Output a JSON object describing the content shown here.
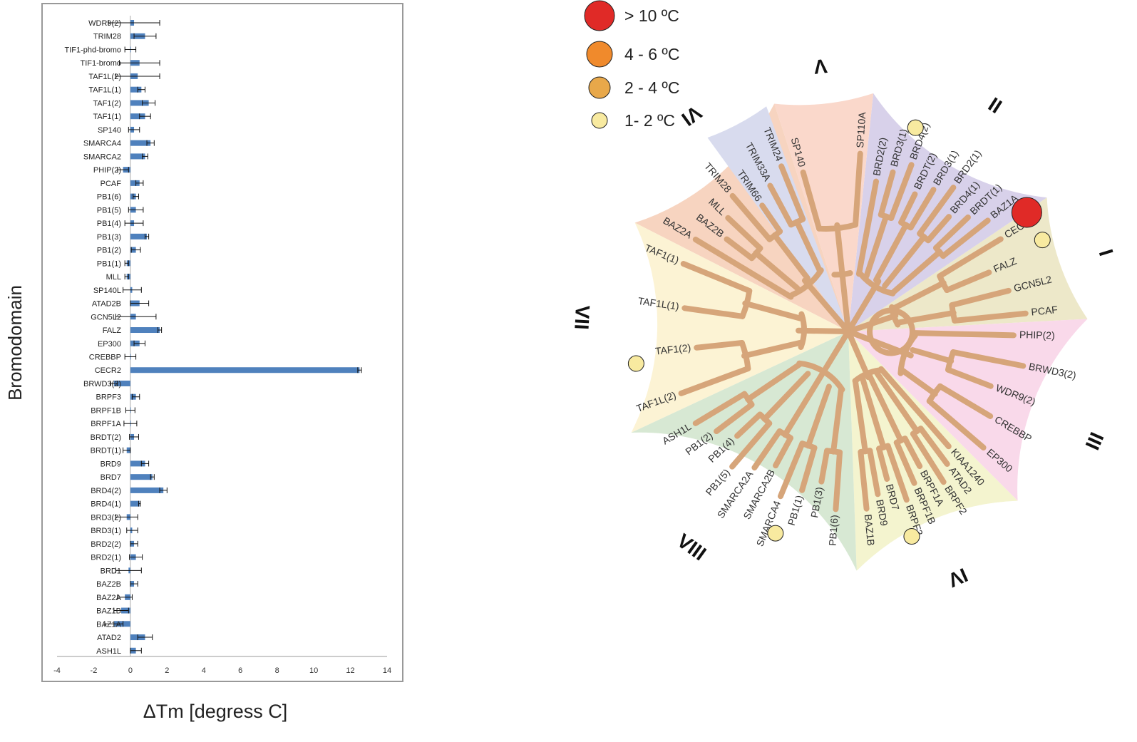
{
  "chart_data": [
    {
      "type": "bar",
      "orientation": "horizontal",
      "ylabel": "Bromodomain",
      "xlabel": "ΔTm [degress C]",
      "xlim": [
        -4,
        14
      ],
      "xticks": [
        -4,
        -2,
        0,
        2,
        4,
        6,
        8,
        10,
        12,
        14
      ],
      "grid": false,
      "bar_color": "#4f81bd",
      "categories": [
        "WDR9(2)",
        "TRIM28",
        "TIF1-phd-bromo",
        "TIF1-bromo",
        "TAF1L(2)",
        "TAF1L(1)",
        "TAF1(2)",
        "TAF1(1)",
        "SP140",
        "SMARCA4",
        "SMARCA2",
        "PHIP(2)",
        "PCAF",
        "PB1(6)",
        "PB1(5)",
        "PB1(4)",
        "PB1(3)",
        "PB1(2)",
        "PB1(1)",
        "MLL",
        "SP140L",
        "ATAD2B",
        "GCN5L2",
        "FALZ",
        "EP300",
        "CREBBP",
        "CECR2",
        "BRWD3(2)",
        "BRPF3",
        "BRPF1B",
        "BRPF1A",
        "BRDT(2)",
        "BRDT(1)",
        "BRD9",
        "BRD7",
        "BRD4(2)",
        "BRD4(1)",
        "BRD3(2)",
        "BRD3(1)",
        "BRD2(2)",
        "BRD2(1)",
        "BRD1",
        "BAZ2B",
        "BAZ2A",
        "BAZ1B",
        "BAZ1A",
        "ATAD2",
        "ASH1L"
      ],
      "values": [
        0.2,
        0.8,
        0.0,
        0.5,
        0.4,
        0.6,
        1.0,
        0.8,
        0.2,
        1.1,
        0.8,
        -0.4,
        0.5,
        0.3,
        0.3,
        0.2,
        0.9,
        0.3,
        -0.2,
        -0.2,
        0.1,
        0.5,
        0.3,
        1.6,
        0.5,
        0.0,
        12.5,
        -0.9,
        0.3,
        0.0,
        0.0,
        0.2,
        -0.2,
        0.8,
        1.2,
        1.8,
        0.5,
        -0.2,
        0.1,
        0.2,
        0.3,
        -0.1,
        0.2,
        -0.3,
        -0.5,
        -0.9,
        0.8,
        0.3
      ],
      "errors": [
        1.4,
        0.6,
        0.3,
        1.1,
        1.2,
        0.2,
        0.35,
        0.3,
        0.3,
        0.2,
        0.15,
        0.3,
        0.2,
        0.15,
        0.4,
        0.5,
        0.1,
        0.25,
        0.1,
        0.1,
        0.5,
        0.5,
        1.1,
        0.1,
        0.3,
        0.3,
        0.1,
        0.2,
        0.2,
        0.25,
        0.35,
        0.25,
        0.2,
        0.2,
        0.1,
        0.2,
        0.05,
        0.6,
        0.3,
        0.2,
        0.35,
        0.7,
        0.2,
        0.4,
        0.4,
        0.5,
        0.4,
        0.3
      ]
    },
    {
      "type": "phylogenetic-tree",
      "legend": [
        {
          "label": "> 10 ºC",
          "color": "#e02a27",
          "size": "xl"
        },
        {
          "label": "4 - 6 ºC",
          "color": "#f08a2c",
          "size": "lg"
        },
        {
          "label": "2 - 4 ºC",
          "color": "#e8a84a",
          "size": "md"
        },
        {
          "label": "1- 2 ºC",
          "color": "#f8eaa0",
          "size": "sm"
        }
      ],
      "groups": [
        {
          "numeral": "I",
          "color": "#ede8c9",
          "leaves": [
            "PCAF",
            "GCN5L2",
            "FALZ",
            "CECR2"
          ]
        },
        {
          "numeral": "II",
          "color": "#d8d1ea",
          "leaves": [
            "BAZ1A",
            "BRDT(1)",
            "BRD4(1)",
            "BRD2(1)",
            "BRD3(1)",
            "BRDT(2)",
            "BRD4(2)",
            "BRD3(1)",
            "BRD2(2)"
          ]
        },
        {
          "numeral": "III",
          "color": "#f9d9ea",
          "leaves": [
            "EP300",
            "CREBBP",
            "WDR9(2)",
            "BRWD3(2)",
            "PHIP(2)"
          ]
        },
        {
          "numeral": "IV",
          "color": "#f4f4cf",
          "leaves": [
            "BAZ1B",
            "BRD9",
            "BRD7",
            "BRPF3",
            "BRPF1B",
            "BRPF1A",
            "BRPF2",
            "ATAD2",
            "KIAA1240"
          ]
        },
        {
          "numeral": "V",
          "color": "#fad8cb",
          "leaves": [
            "SP110A",
            "SP140"
          ]
        },
        {
          "numeral": "VI",
          "color": "#f7d4c0",
          "leaves": [
            "TRIM24",
            "TRIM33A",
            "TRIM66",
            "TRIM28",
            "MLL",
            "BAZ2B",
            "BAZ2A"
          ]
        },
        {
          "numeral": "VII",
          "color": "#fcf3d4",
          "leaves": [
            "TAF1(1)",
            "TAF1L(1)",
            "TAF1(2)",
            "TAF1L(2)"
          ]
        },
        {
          "numeral": "VIII",
          "color": "#d7e8d3",
          "leaves": [
            "ASH1L",
            "PB1(2)",
            "PB1(4)",
            "PB1(5)",
            "SMARCA2A",
            "SMARCA2B",
            "SMARCA4",
            "PB1(1)",
            "PB1(3)",
            "PB1(6)"
          ]
        }
      ],
      "hit_markers": [
        {
          "leaf": "CECR2",
          "level": "> 10 ºC"
        },
        {
          "leaf": "FALZ",
          "level": "1- 2 ºC"
        },
        {
          "leaf": "BRD4(2)",
          "level": "1- 2 ºC"
        },
        {
          "leaf": "BRD7",
          "level": "1- 2 ºC"
        },
        {
          "leaf": "SMARCA4",
          "level": "1- 2 ºC"
        },
        {
          "leaf": "TAF1(2)",
          "level": "1- 2 ºC"
        }
      ],
      "branch_color": "#d6a57a"
    }
  ]
}
